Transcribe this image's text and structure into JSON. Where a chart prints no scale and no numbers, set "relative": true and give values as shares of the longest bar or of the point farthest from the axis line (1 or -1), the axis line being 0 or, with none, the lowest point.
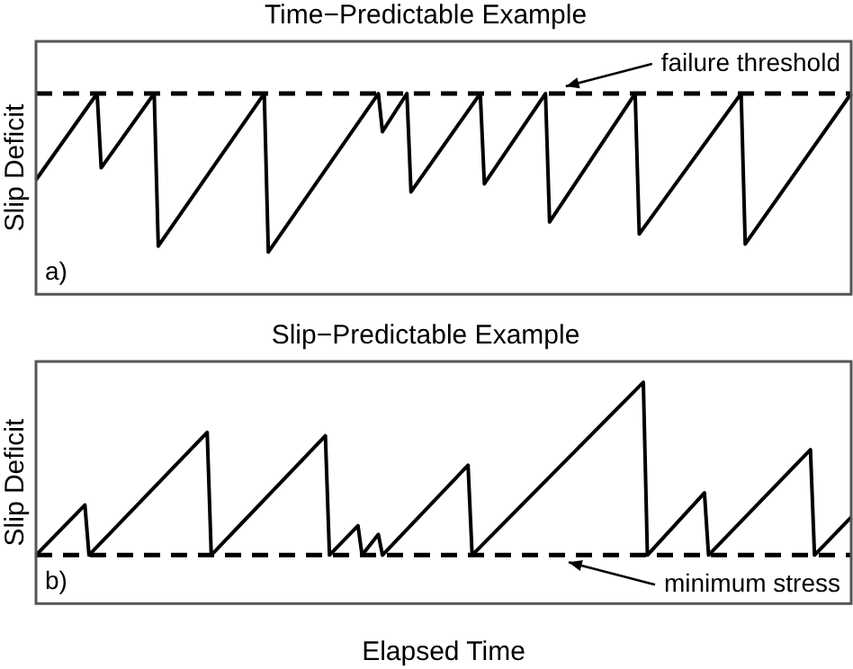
{
  "chart_data": [
    {
      "type": "line",
      "title": "Time−Predictable Example",
      "ylabel": "Slip Deficit",
      "relative": true,
      "legend": false,
      "marker": "none",
      "categories": [
        null,
        null,
        null,
        null,
        null,
        null,
        null,
        null,
        null,
        null,
        null,
        null,
        null,
        null,
        null,
        null,
        null,
        null,
        null,
        null,
        null,
        null,
        null,
        null,
        null,
        null,
        null,
        null,
        null,
        null,
        null,
        null,
        null,
        null,
        null,
        null,
        null,
        null,
        null,
        null,
        null,
        null,
        null,
        null,
        null,
        null,
        null,
        null,
        null,
        null,
        null,
        null,
        null,
        null,
        null,
        null,
        null,
        null,
        null,
        null,
        null,
        null,
        null,
        null,
        null,
        null,
        null,
        null,
        null,
        null,
        null,
        null,
        null,
        null,
        null,
        null,
        null,
        null,
        null,
        null,
        null,
        null,
        null,
        null,
        null,
        null,
        null,
        null,
        null,
        null,
        null,
        null,
        null,
        null,
        null,
        null,
        null,
        null,
        null,
        null,
        null,
        null,
        null,
        null,
        null,
        null,
        null,
        null,
        null,
        null,
        null,
        null,
        null,
        null,
        null,
        null,
        null,
        null,
        null,
        null,
        null,
        null,
        null,
        null,
        null,
        null,
        null,
        null,
        null,
        null,
        null,
        null,
        null,
        null,
        null,
        null,
        null,
        null,
        null,
        null,
        null,
        null,
        null,
        null,
        null,
        null,
        null,
        null,
        null,
        null,
        null,
        null,
        null,
        null,
        null,
        null,
        null,
        null,
        null,
        null,
        null,
        null,
        null,
        null,
        null,
        null,
        null,
        null,
        null,
        null,
        null,
        null,
        null,
        null,
        null,
        null,
        null,
        null,
        null,
        null,
        null,
        null,
        null,
        null,
        null,
        null,
        null,
        null,
        null,
        null,
        null,
        null,
        null,
        null,
        null,
        null,
        null,
        null,
        null,
        null,
        null
      ],
      "series": [
        {
          "color": "#000000",
          "values": [
            0.57,
            null,
            null,
            null,
            null,
            null,
            null,
            null,
            null,
            null,
            null,
            null,
            null,
            null,
            null,
            1,
            0.63,
            null,
            null,
            null,
            null,
            null,
            null,
            null,
            null,
            null,
            null,
            null,
            null,
            1,
            0.24,
            null,
            null,
            null,
            null,
            null,
            null,
            null,
            null,
            null,
            null,
            null,
            null,
            null,
            null,
            null,
            null,
            null,
            null,
            null,
            null,
            null,
            null,
            null,
            null,
            null,
            1,
            0.21,
            null,
            null,
            null,
            null,
            null,
            null,
            null,
            null,
            null,
            null,
            null,
            null,
            null,
            null,
            null,
            null,
            null,
            null,
            null,
            null,
            null,
            null,
            null,
            null,
            null,
            null,
            1,
            0.81,
            null,
            null,
            null,
            null,
            null,
            1,
            0.51,
            null,
            null,
            null,
            null,
            null,
            null,
            null,
            null,
            null,
            null,
            null,
            null,
            null,
            null,
            null,
            null,
            1,
            0.55,
            null,
            null,
            null,
            null,
            null,
            null,
            null,
            null,
            null,
            null,
            null,
            null,
            null,
            null,
            1,
            0.36,
            null,
            null,
            null,
            null,
            null,
            null,
            null,
            null,
            null,
            null,
            null,
            null,
            null,
            null,
            null,
            null,
            null,
            null,
            null,
            null,
            1,
            0.3,
            null,
            null,
            null,
            null,
            null,
            null,
            null,
            null,
            null,
            null,
            null,
            null,
            null,
            null,
            null,
            null,
            null,
            null,
            null,
            null,
            null,
            null,
            null,
            null,
            1,
            0.25,
            null,
            null,
            null,
            null,
            null,
            null,
            null,
            null,
            null,
            null,
            null,
            null,
            null,
            null,
            null,
            null,
            null,
            null,
            null,
            null,
            null,
            null,
            null,
            null,
            null,
            1
          ]
        }
      ],
      "ref_lines": [
        {
          "axis": "y",
          "value": 1,
          "color": "#000000",
          "line_style": "dashed"
        }
      ],
      "annotations": [
        "failure threshold",
        "a)"
      ]
    },
    {
      "type": "line",
      "title": "Slip−Predictable Example",
      "ylabel": "Slip Deficit",
      "xlabel": "Elapsed Time",
      "relative": true,
      "legend": false,
      "marker": "none",
      "categories": [
        null,
        null,
        null,
        null,
        null,
        null,
        null,
        null,
        null,
        null,
        null,
        null,
        null,
        null,
        null,
        null,
        null,
        null,
        null,
        null,
        null,
        null,
        null,
        null,
        null,
        null,
        null,
        null,
        null,
        null,
        null,
        null,
        null,
        null,
        null,
        null,
        null,
        null,
        null,
        null,
        null,
        null,
        null,
        null,
        null,
        null,
        null,
        null,
        null,
        null,
        null,
        null,
        null,
        null,
        null,
        null,
        null,
        null,
        null,
        null,
        null,
        null,
        null,
        null,
        null,
        null,
        null,
        null,
        null,
        null,
        null,
        null,
        null,
        null,
        null,
        null,
        null,
        null,
        null,
        null,
        null,
        null,
        null,
        null,
        null,
        null,
        null,
        null,
        null,
        null,
        null,
        null,
        null,
        null,
        null,
        null,
        null,
        null,
        null,
        null,
        null,
        null,
        null,
        null,
        null,
        null,
        null,
        null,
        null,
        null,
        null,
        null,
        null,
        null,
        null,
        null,
        null,
        null,
        null,
        null,
        null,
        null,
        null,
        null,
        null,
        null,
        null,
        null,
        null,
        null,
        null,
        null,
        null,
        null,
        null,
        null,
        null,
        null,
        null,
        null,
        null,
        null,
        null,
        null,
        null,
        null,
        null,
        null,
        null,
        null,
        null,
        null,
        null,
        null,
        null,
        null,
        null,
        null,
        null,
        null,
        null,
        null,
        null,
        null,
        null,
        null,
        null,
        null,
        null,
        null,
        null,
        null,
        null,
        null,
        null,
        null,
        null,
        null,
        null,
        null,
        null,
        null,
        null,
        null,
        null,
        null,
        null,
        null,
        null,
        null,
        null,
        null,
        null,
        null,
        null,
        null,
        null,
        null,
        null,
        null,
        null
      ],
      "series": [
        {
          "color": "#000000",
          "values": [
            0,
            null,
            null,
            null,
            null,
            null,
            null,
            null,
            null,
            null,
            null,
            null,
            0.29,
            0,
            null,
            null,
            null,
            null,
            null,
            null,
            null,
            null,
            null,
            null,
            null,
            null,
            null,
            null,
            null,
            null,
            null,
            null,
            null,
            null,
            null,
            null,
            null,
            null,
            null,
            null,
            null,
            null,
            0.71,
            0,
            null,
            null,
            null,
            null,
            null,
            null,
            null,
            null,
            null,
            null,
            null,
            null,
            null,
            null,
            null,
            null,
            null,
            null,
            null,
            null,
            null,
            null,
            null,
            null,
            null,
            null,
            null,
            0.69,
            0,
            null,
            null,
            null,
            null,
            null,
            null,
            0.17,
            0,
            null,
            null,
            null,
            0.12,
            0,
            null,
            null,
            null,
            null,
            null,
            null,
            null,
            null,
            null,
            null,
            null,
            null,
            null,
            null,
            null,
            null,
            null,
            null,
            null,
            null,
            0.52,
            0,
            null,
            null,
            null,
            null,
            null,
            null,
            null,
            null,
            null,
            null,
            null,
            null,
            null,
            null,
            null,
            null,
            null,
            null,
            null,
            null,
            null,
            null,
            null,
            null,
            null,
            null,
            null,
            null,
            null,
            null,
            null,
            null,
            null,
            null,
            null,
            null,
            null,
            null,
            null,
            null,
            null,
            1,
            0,
            null,
            null,
            null,
            null,
            null,
            null,
            null,
            null,
            null,
            null,
            null,
            null,
            null,
            0.36,
            0,
            null,
            null,
            null,
            null,
            null,
            null,
            null,
            null,
            null,
            null,
            null,
            null,
            null,
            null,
            null,
            null,
            null,
            null,
            null,
            null,
            null,
            null,
            null,
            null,
            0.61,
            0,
            null,
            null,
            null,
            null,
            null,
            null,
            null,
            null,
            0.22
          ]
        }
      ],
      "ref_lines": [
        {
          "axis": "y",
          "value": 0,
          "color": "#000000",
          "line_style": "dashed"
        }
      ],
      "annotations": [
        "minimum stress",
        "b)"
      ]
    }
  ]
}
